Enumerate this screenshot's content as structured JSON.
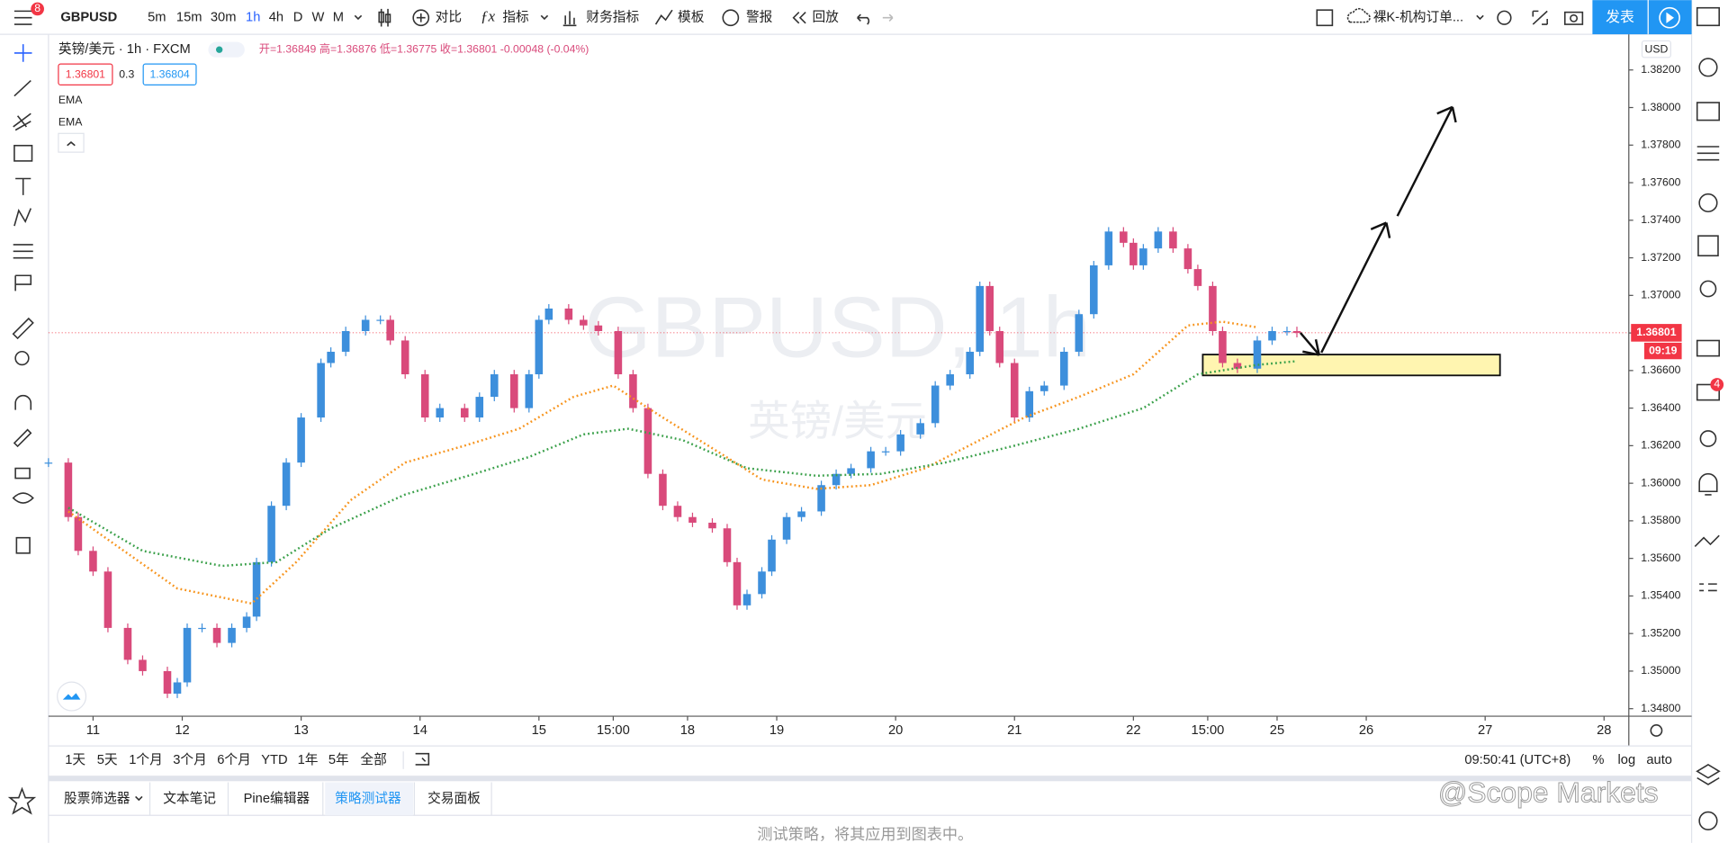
{
  "toolbar": {
    "symbol": "GBPUSD",
    "intervals": [
      "5m",
      "15m",
      "30m",
      "1h",
      "4h",
      "D",
      "W",
      "M"
    ],
    "buttons": [
      "对比",
      "指标",
      "财务指标",
      "模板",
      "警报",
      "回放"
    ],
    "layout": "裸K-机构订单...",
    "publish": "发表",
    "badge": "8"
  },
  "legend": {
    "title": "英镑/美元 · 1h · FXCM",
    "ohlc": "开=1.36849 高=1.36876 低=1.36775 收=1.36801 -0.00048 (-0.04%)",
    "bid": "1.36801",
    "spread": "0.3",
    "ask": "1.36804"
  },
  "chart_data": {
    "type": "candlestick",
    "watermark": "GBPUSD, 1h",
    "watermark_sub": "英镑/美元",
    "currency": "USD",
    "up_color": "#3d8fdc",
    "down_color": "#d94a7b",
    "x": [
      0,
      4,
      6,
      9,
      12,
      16,
      19,
      24,
      26,
      28,
      31,
      34,
      37,
      40,
      42,
      45,
      48,
      51,
      55,
      57,
      60,
      64,
      67,
      69,
      72,
      76,
      79,
      84,
      87,
      90,
      94,
      97,
      99,
      101,
      105,
      108,
      111,
      115,
      118,
      121,
      124,
      127,
      130,
      134,
      137,
      139,
      141,
      144,
      146,
      149,
      152,
      156,
      159,
      162,
      166,
      169,
      172,
      176,
      179,
      182,
      186,
      188,
      190,
      192,
      195,
      198,
      201,
      205,
      208,
      211,
      214,
      217,
      219,
      221,
      224,
      227,
      230,
      232,
      235,
      237,
      240,
      244,
      247,
      250,
      252
    ],
    "values": [
      1.3611,
      1.3582,
      1.3564,
      1.3553,
      1.3523,
      1.3506,
      1.35,
      1.3488,
      1.3494,
      1.3523,
      1.3523,
      1.3515,
      1.3523,
      1.3529,
      1.3558,
      1.3588,
      1.3611,
      1.3635,
      1.3664,
      1.367,
      1.3681,
      1.3687,
      1.3687,
      1.3676,
      1.3658,
      1.3635,
      1.364,
      1.3635,
      1.3646,
      1.3658,
      1.364,
      1.3658,
      1.3687,
      1.3693,
      1.3687,
      1.3684,
      1.3681,
      1.3658,
      1.364,
      1.3605,
      1.3588,
      1.3582,
      1.3579,
      1.3576,
      1.3558,
      1.3535,
      1.3541,
      1.3553,
      1.357,
      1.3582,
      1.3585,
      1.3599,
      1.3605,
      1.3608,
      1.3617,
      1.3617,
      1.3626,
      1.3632,
      1.3652,
      1.3658,
      1.367,
      1.3705,
      1.3681,
      1.3664,
      1.3635,
      1.3649,
      1.3652,
      1.367,
      1.369,
      1.3716,
      1.3734,
      1.3728,
      1.3716,
      1.3725,
      1.3734,
      1.3725,
      1.3714,
      1.3705,
      1.3681,
      1.3664,
      1.3661,
      1.3676,
      1.3681,
      1.3681,
      1.368
    ],
    "series": [
      {
        "name": "EMA",
        "color": "#f7941d",
        "x": [
          4,
          12,
          26,
          41,
          50,
          61,
          72,
          84,
          95,
          106,
          114,
          124,
          135,
          144,
          155,
          166,
          177,
          188,
          197,
          208,
          219,
          230,
          237,
          244
        ],
        "values": [
          1.3585,
          1.357,
          1.3544,
          1.3536,
          1.3558,
          1.3591,
          1.3611,
          1.362,
          1.3629,
          1.3646,
          1.3652,
          1.3635,
          1.3617,
          1.3602,
          1.3597,
          1.3599,
          1.3608,
          1.3623,
          1.3635,
          1.3646,
          1.3658,
          1.3684,
          1.3686,
          1.3683
        ]
      },
      {
        "name": "EMA",
        "color": "#3aa04a",
        "x": [
          4,
          19,
          35,
          46,
          57,
          72,
          86,
          97,
          108,
          117,
          128,
          141,
          155,
          168,
          181,
          195,
          208,
          221,
          232,
          244,
          252
        ],
        "values": [
          1.3587,
          1.3564,
          1.3556,
          1.3558,
          1.3576,
          1.3594,
          1.3605,
          1.3614,
          1.3626,
          1.3629,
          1.3623,
          1.3608,
          1.3604,
          1.3605,
          1.3611,
          1.362,
          1.3629,
          1.364,
          1.3658,
          1.3663,
          1.3665
        ]
      }
    ],
    "ylim": [
      1.3476,
      1.3839
    ],
    "yticks": [
      {
        "value": 1.348,
        "label": "1.34800"
      },
      {
        "value": 1.35,
        "label": "1.35000"
      },
      {
        "value": 1.352,
        "label": "1.35200"
      },
      {
        "value": 1.354,
        "label": "1.35400"
      },
      {
        "value": 1.356,
        "label": "1.35600"
      },
      {
        "value": 1.358,
        "label": "1.35800"
      },
      {
        "value": 1.36,
        "label": "1.36000"
      },
      {
        "value": 1.362,
        "label": "1.36200"
      },
      {
        "value": 1.364,
        "label": "1.36400"
      },
      {
        "value": 1.366,
        "label": "1.36600"
      },
      {
        "value": 1.368,
        "label": "1.36800"
      },
      {
        "value": 1.37,
        "label": "1.37000"
      },
      {
        "value": 1.372,
        "label": "1.37200"
      },
      {
        "value": 1.374,
        "label": "1.37400"
      },
      {
        "value": 1.376,
        "label": "1.37600"
      },
      {
        "value": 1.378,
        "label": "1.37800"
      },
      {
        "value": 1.38,
        "label": "1.38000"
      },
      {
        "value": 1.382,
        "label": "1.38200"
      }
    ],
    "xlim": [
      0,
      319
    ],
    "xticks": [
      {
        "value": 9,
        "label": "11"
      },
      {
        "value": 27,
        "label": "12"
      },
      {
        "value": 51,
        "label": "13"
      },
      {
        "value": 75,
        "label": "14"
      },
      {
        "value": 99,
        "label": "15"
      },
      {
        "value": 114,
        "label": "15:00"
      },
      {
        "value": 129,
        "label": "18"
      },
      {
        "value": 147,
        "label": "19"
      },
      {
        "value": 171,
        "label": "20"
      },
      {
        "value": 195,
        "label": "21"
      },
      {
        "value": 219,
        "label": "22"
      },
      {
        "value": 234,
        "label": "15:00"
      },
      {
        "value": 248,
        "label": "25"
      },
      {
        "value": 266,
        "label": "26"
      },
      {
        "value": 290,
        "label": "27"
      },
      {
        "value": 314,
        "label": "28"
      }
    ],
    "last_price": {
      "value": 1.36801,
      "label": "1.36801"
    },
    "countdown": "09:19",
    "zone": {
      "x": [
        233,
        293
      ],
      "y": [
        1.36685,
        1.36574
      ],
      "color": "#fff5b0"
    }
  },
  "range_bar": {
    "ranges": [
      "1天",
      "5天",
      "1个月",
      "3个月",
      "6个月",
      "YTD",
      "1年",
      "5年",
      "全部"
    ],
    "clock": "09:50:41 (UTC+8)",
    "options": [
      "%",
      "log",
      "auto"
    ]
  },
  "bottom": {
    "tabs": [
      "股票筛选器",
      "文本笔记",
      "Pine编辑器",
      "策略测试器",
      "交易面板"
    ],
    "message": "测试策略，将其应用到图表中。"
  },
  "brand": "@Scope Markets",
  "notification_badge": "4"
}
